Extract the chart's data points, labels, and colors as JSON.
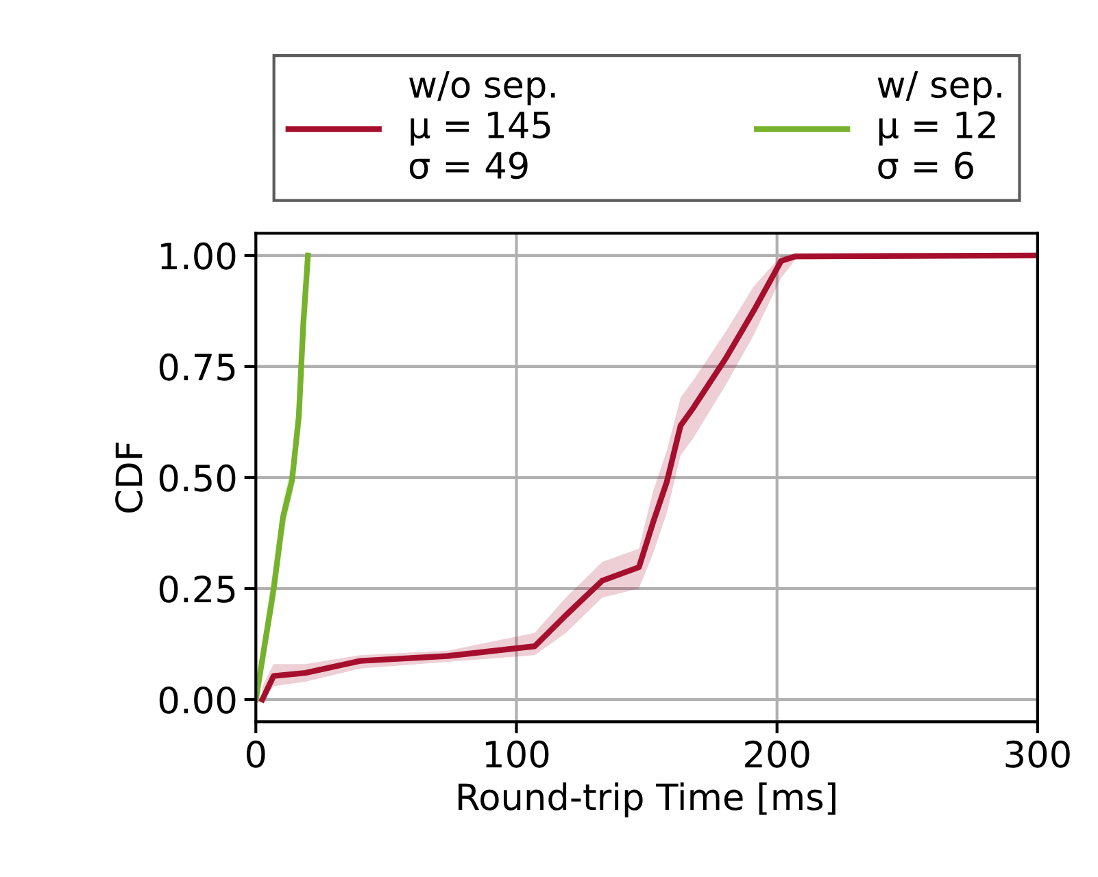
{
  "chart_data": {
    "type": "line",
    "xlabel": "Round-trip Time [ms]",
    "ylabel": "CDF",
    "xlim": [
      0,
      300
    ],
    "ylim": [
      -0.05,
      1.05
    ],
    "xticks": [
      0,
      100,
      200,
      300
    ],
    "yticks": [
      {
        "value": 0,
        "label": "0.00"
      },
      {
        "value": 0.25,
        "label": "0.25"
      },
      {
        "value": 0.5,
        "label": "0.50"
      },
      {
        "value": 0.75,
        "label": "0.75"
      },
      {
        "value": 1,
        "label": "1.00"
      }
    ],
    "grid": true,
    "legend": "top",
    "line_style": "solid",
    "series": [
      {
        "name": "w/o sep.\nμ = 145\nσ = 49",
        "color": "#a50f2d",
        "x": [
          2.5,
          6.8,
          19,
          40,
          73.5,
          107,
          119,
          133,
          147,
          152.5,
          157.7,
          163,
          168,
          180.5,
          191,
          201.6,
          207,
          300
        ],
        "values": [
          0,
          0.053,
          0.06,
          0.087,
          0.098,
          0.12,
          0.19,
          0.268,
          0.298,
          0.4,
          0.49,
          0.617,
          0.658,
          0.77,
          0.875,
          0.988,
          0.998,
          1.0
        ],
        "lower": [
          0,
          0.03,
          0.04,
          0.07,
          0.085,
          0.1,
          0.15,
          0.23,
          0.25,
          0.33,
          0.42,
          0.55,
          0.59,
          0.71,
          0.82,
          0.95,
          0.99,
          1.0
        ],
        "upper": [
          0.03,
          0.08,
          0.08,
          0.1,
          0.11,
          0.15,
          0.23,
          0.31,
          0.34,
          0.47,
          0.56,
          0.68,
          0.72,
          0.83,
          0.93,
          1.0,
          1.0,
          1.0
        ]
      },
      {
        "name": "w/ sep.\nμ = 12\nσ = 6",
        "color": "#77b22d",
        "x": [
          0,
          6.8,
          10.4,
          13.9,
          16.5,
          18.2,
          20
        ],
        "values": [
          0,
          0.247,
          0.41,
          0.494,
          0.638,
          0.844,
          1.0
        ],
        "lower": [
          0,
          0.2,
          0.37,
          0.46,
          0.6,
          0.81,
          0.98
        ],
        "upper": [
          0.03,
          0.3,
          0.45,
          0.53,
          0.67,
          0.87,
          1.0
        ]
      }
    ]
  }
}
